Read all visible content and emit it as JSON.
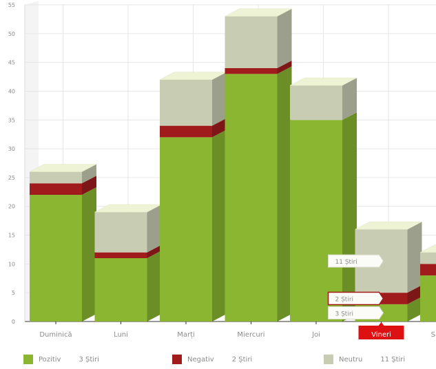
{
  "chart_data": {
    "type": "bar",
    "stacked": true,
    "three_d": true,
    "categories": [
      "Duminică",
      "Luni",
      "Marți",
      "Miercuri",
      "Joi",
      "Vineri",
      "Sâmbătă"
    ],
    "highlighted_category": "Vineri",
    "ylim": [
      0,
      55
    ],
    "yticks": [
      0,
      5,
      10,
      15,
      20,
      25,
      30,
      35,
      40,
      45,
      50,
      55
    ],
    "grid": true,
    "series": [
      {
        "name": "Pozitiv",
        "color": "#8ab631",
        "values": [
          22,
          11,
          32,
          43,
          35,
          3,
          8
        ]
      },
      {
        "name": "Negativ",
        "color": "#a01c1c",
        "values": [
          2,
          1,
          2,
          1,
          0,
          2,
          2
        ]
      },
      {
        "name": "Neutru",
        "color": "#c8ccb2",
        "values": [
          2,
          7,
          8,
          9,
          6,
          11,
          2
        ]
      }
    ],
    "tooltips": [
      {
        "text": "11 Știri",
        "series": "Neutru",
        "category": "Vineri"
      },
      {
        "text": "2 Știri",
        "series": "Negativ",
        "category": "Vineri"
      },
      {
        "text": "3 Știri",
        "series": "Pozitiv",
        "category": "Vineri"
      }
    ]
  },
  "legend": [
    {
      "name": "Pozitiv",
      "count": "3 Știri",
      "color": "#8ab631"
    },
    {
      "name": "Negativ",
      "count": "2 Știri",
      "color": "#a01c1c"
    },
    {
      "name": "Neutru",
      "count": "11 Știri",
      "color": "#c8ccb2"
    }
  ],
  "colors": {
    "highlight_label_bg": "#dd1111",
    "grid": "#e6e6e6",
    "axis": "#333333"
  }
}
